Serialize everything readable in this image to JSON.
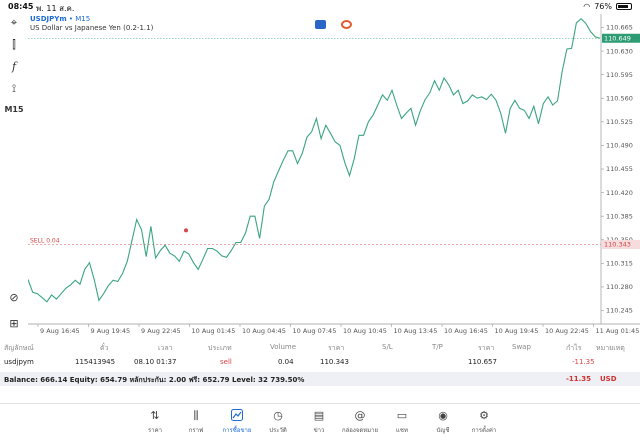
{
  "status_bar": {
    "time": "08:45",
    "date": "พ. 11 ส.ค.",
    "battery": "76%"
  },
  "toolbar": {
    "timeframe": "M15"
  },
  "chart": {
    "symbol": "USDJPYm",
    "period": "M15",
    "description": "US Dollar vs Japanese Yen (0.2-1.1)",
    "sell_label": "SELL 0.04",
    "line_color": "#3aa57f",
    "price_labels": [
      "110.665",
      "110.630",
      "110.595",
      "110.560",
      "110.525",
      "110.490",
      "110.455",
      "110.420",
      "110.385",
      "110.350",
      "110.315",
      "110.280",
      "110.245"
    ],
    "current_price": "110.649",
    "order_price": "110.343",
    "time_labels": [
      "9 Aug 16:45",
      "9 Aug 19:45",
      "9 Aug 22:45",
      "10 Aug 01:45",
      "10 Aug 04:45",
      "10 Aug 07:45",
      "10 Aug 10:45",
      "10 Aug 13:45",
      "10 Aug 16:45",
      "10 Aug 19:45",
      "10 Aug 22:45",
      "11 Aug 01:45"
    ]
  },
  "chart_data": {
    "type": "line",
    "ylim": [
      110.225,
      110.685
    ],
    "y": [
      110.291,
      110.272,
      110.27,
      110.264,
      110.258,
      110.268,
      110.262,
      110.27,
      110.278,
      110.283,
      110.29,
      110.284,
      110.306,
      110.316,
      110.291,
      110.26,
      110.27,
      110.282,
      110.29,
      110.288,
      110.3,
      110.318,
      110.349,
      110.38,
      110.365,
      110.325,
      110.37,
      110.323,
      110.334,
      110.342,
      110.33,
      110.326,
      110.318,
      110.333,
      110.329,
      110.316,
      110.306,
      110.321,
      110.337,
      110.337,
      110.333,
      110.326,
      110.324,
      110.334,
      110.346,
      110.346,
      110.36,
      110.385,
      110.385,
      110.352,
      110.4,
      110.41,
      110.436,
      110.452,
      110.468,
      110.482,
      110.482,
      110.463,
      110.478,
      110.502,
      110.51,
      110.53,
      110.5,
      110.52,
      110.508,
      110.495,
      110.49,
      110.465,
      110.445,
      110.47,
      110.505,
      110.505,
      110.525,
      110.535,
      110.55,
      110.565,
      110.557,
      110.572,
      110.55,
      110.53,
      110.538,
      110.545,
      110.52,
      110.542,
      110.558,
      110.568,
      110.586,
      110.572,
      110.59,
      110.58,
      110.565,
      110.572,
      110.552,
      110.556,
      110.565,
      110.56,
      110.562,
      110.558,
      110.566,
      110.557,
      110.538,
      110.508,
      110.545,
      110.557,
      110.545,
      110.542,
      110.53,
      110.548,
      110.522,
      110.552,
      110.562,
      110.55,
      110.556,
      110.6,
      110.633,
      110.634,
      110.672,
      110.678,
      110.671,
      110.659,
      110.651,
      110.649
    ]
  },
  "positions": {
    "headers": {
      "symbol": "สัญลักษณ์",
      "ticket": "ตั๋ว",
      "time": "เวลา",
      "type": "ประเภท",
      "volume": "Volume",
      "price": "ราคา",
      "sl": "S/L",
      "tp": "T/P",
      "current": "ราคา",
      "swap": "Swap",
      "profit": "กำไร",
      "comment": "หมายเหตุ"
    },
    "rows": [
      {
        "symbol": "usdjpym",
        "ticket": "115413945",
        "time": "08.10 01:37",
        "type": "sell",
        "volume": "0.04",
        "price": "110.343",
        "sl": "",
        "tp": "",
        "current": "110.657",
        "swap": "",
        "profit": "-11.35",
        "comment": ""
      }
    ]
  },
  "balance": {
    "summary": "Balance: 666.14 Equity: 654.79 หลักประกัน: 2.00 ฟรี: 652.79 Level: 32 739.50%",
    "profit": "-11.35",
    "currency": "USD"
  },
  "nav": [
    {
      "label": "ราคา",
      "icon": "quotes-icon",
      "glyph": "⇅"
    },
    {
      "label": "กราฟ",
      "icon": "chart-icon",
      "glyph": "⫼"
    },
    {
      "label": "การซื้อขาย",
      "icon": "trade-icon",
      "glyph": "📈"
    },
    {
      "label": "ประวัติ",
      "icon": "history-icon",
      "glyph": "◷"
    },
    {
      "label": "ข่าว",
      "icon": "news-icon",
      "glyph": "▤"
    },
    {
      "label": "กล่องจดหมาย",
      "icon": "mailbox-icon",
      "glyph": "@"
    },
    {
      "label": "แชท",
      "icon": "chat-icon",
      "glyph": "▭"
    },
    {
      "label": "บัญชี",
      "icon": "account-icon",
      "glyph": "◉"
    },
    {
      "label": "การตั้งค่า",
      "icon": "settings-icon",
      "glyph": "⚙"
    }
  ]
}
